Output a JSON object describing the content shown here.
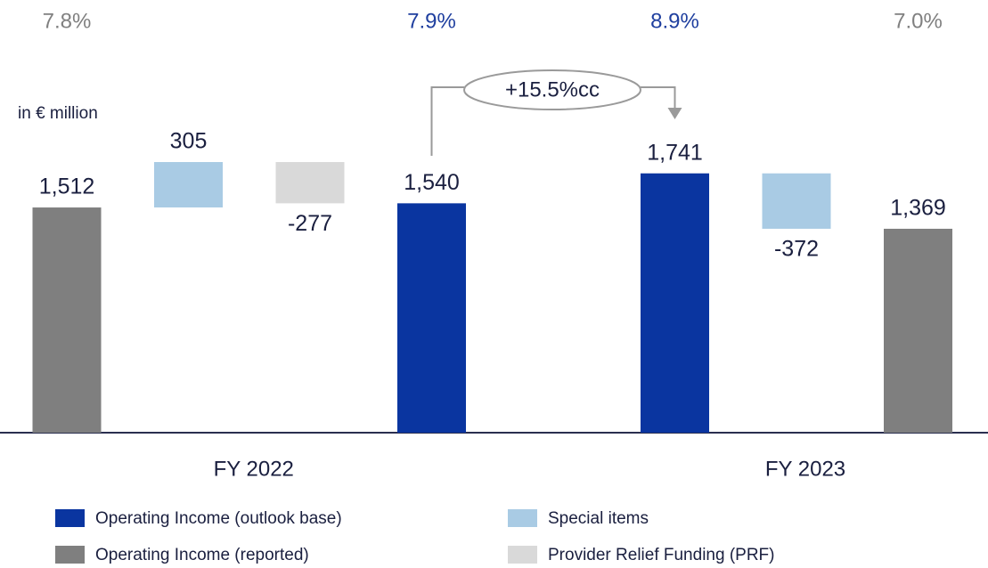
{
  "chart_data": {
    "type": "waterfall",
    "unit_label": "in € million",
    "ylim": [
      0,
      2000
    ],
    "series": [
      {
        "name": "Operating Income (outlook base)",
        "color": "#0a35a0",
        "values": [
          null,
          null,
          null,
          1540,
          1741,
          null,
          null
        ],
        "value_labels": [
          null,
          null,
          null,
          "1,540",
          "1,741",
          null,
          null
        ]
      },
      {
        "name": "Operating Income (reported)",
        "color": "#7f7f7f",
        "values": [
          1512,
          null,
          null,
          null,
          null,
          null,
          1369
        ],
        "value_labels": [
          "1,512",
          null,
          null,
          null,
          null,
          null,
          "1,369"
        ]
      },
      {
        "name": "Special items",
        "color": "#a9cbe4",
        "values": [
          null,
          305,
          null,
          null,
          null,
          -372,
          null
        ],
        "value_labels": [
          null,
          "305",
          null,
          null,
          null,
          "-372",
          null
        ]
      },
      {
        "name": "Provider Relief Funding (PRF)",
        "color": "#d9d9d9",
        "values": [
          null,
          null,
          -277,
          null,
          null,
          null,
          null
        ],
        "value_labels": [
          null,
          null,
          "-277",
          null,
          null,
          null,
          null
        ]
      }
    ],
    "margins": {
      "values": [
        7.8,
        null,
        null,
        7.9,
        8.9,
        null,
        7.0
      ],
      "value_labels": [
        "7.8%",
        null,
        null,
        "7.9%",
        "8.9%",
        null,
        "7.0%"
      ],
      "colors": [
        "#808080",
        null,
        null,
        "#1f3f9f",
        "#1f3f9f",
        null,
        "#808080"
      ]
    },
    "groups": [
      {
        "label": "FY 2022",
        "span": [
          0,
          3
        ]
      },
      {
        "label": "FY 2023",
        "span": [
          4,
          6
        ]
      }
    ],
    "annotation": {
      "label": "+15.5%cc",
      "from": 3,
      "to": 4
    }
  }
}
